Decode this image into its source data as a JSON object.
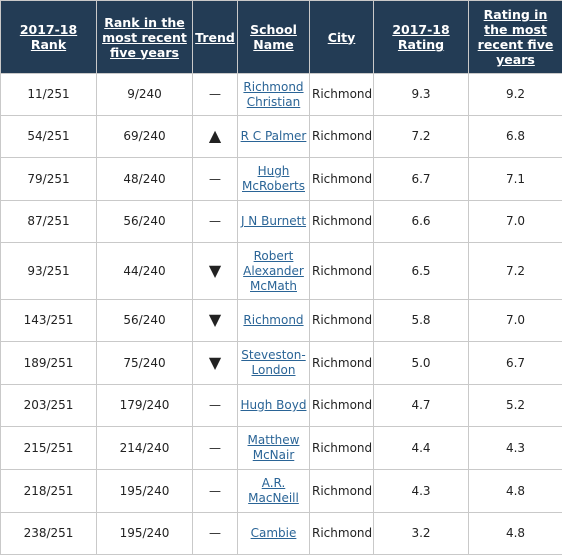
{
  "columns": {
    "rank": "2017-18 Rank",
    "rank_five": "Rank in the most recent five years",
    "trend": "Trend",
    "school": "School Name",
    "city": "City",
    "rating": "2017-18 Rating",
    "rating_five": "Rating in the most recent five years"
  },
  "rows": [
    {
      "rank": "11/251",
      "rank_five": "9/240",
      "trend": "—",
      "trend_icon": "dash-icon",
      "school": "Richmond Christian",
      "city": "Richmond",
      "rating": "9.3",
      "rating_five": "9.2"
    },
    {
      "rank": "54/251",
      "rank_five": "69/240",
      "trend": "▲",
      "trend_icon": "triangle-up-icon",
      "school": "R C Palmer",
      "city": "Richmond",
      "rating": "7.2",
      "rating_five": "6.8"
    },
    {
      "rank": "79/251",
      "rank_five": "48/240",
      "trend": "—",
      "trend_icon": "dash-icon",
      "school": "Hugh McRoberts",
      "city": "Richmond",
      "rating": "6.7",
      "rating_five": "7.1"
    },
    {
      "rank": "87/251",
      "rank_five": "56/240",
      "trend": "—",
      "trend_icon": "dash-icon",
      "school": "J N Burnett",
      "city": "Richmond",
      "rating": "6.6",
      "rating_five": "7.0"
    },
    {
      "rank": "93/251",
      "rank_five": "44/240",
      "trend": "▼",
      "trend_icon": "triangle-down-icon",
      "school": "Robert Alexander McMath",
      "city": "Richmond",
      "rating": "6.5",
      "rating_five": "7.2"
    },
    {
      "rank": "143/251",
      "rank_five": "56/240",
      "trend": "▼",
      "trend_icon": "triangle-down-icon",
      "school": "Richmond",
      "city": "Richmond",
      "rating": "5.8",
      "rating_five": "7.0"
    },
    {
      "rank": "189/251",
      "rank_five": "75/240",
      "trend": "▼",
      "trend_icon": "triangle-down-icon",
      "school": "Steveston-London",
      "city": "Richmond",
      "rating": "5.0",
      "rating_five": "6.7"
    },
    {
      "rank": "203/251",
      "rank_five": "179/240",
      "trend": "—",
      "trend_icon": "dash-icon",
      "school": "Hugh Boyd",
      "city": "Richmond",
      "rating": "4.7",
      "rating_five": "5.2"
    },
    {
      "rank": "215/251",
      "rank_five": "214/240",
      "trend": "—",
      "trend_icon": "dash-icon",
      "school": "Matthew McNair",
      "city": "Richmond",
      "rating": "4.4",
      "rating_five": "4.3"
    },
    {
      "rank": "218/251",
      "rank_five": "195/240",
      "trend": "—",
      "trend_icon": "dash-icon",
      "school": "A.R. MacNeill",
      "city": "Richmond",
      "rating": "4.3",
      "rating_five": "4.8"
    },
    {
      "rank": "238/251",
      "rank_five": "195/240",
      "trend": "—",
      "trend_icon": "dash-icon",
      "school": "Cambie",
      "city": "Richmond",
      "rating": "3.2",
      "rating_five": "4.8"
    }
  ],
  "colors": {
    "header_bg": "#233c55",
    "header_text": "#ffffff",
    "link": "#2a6496",
    "border": "#c9c9c9"
  }
}
